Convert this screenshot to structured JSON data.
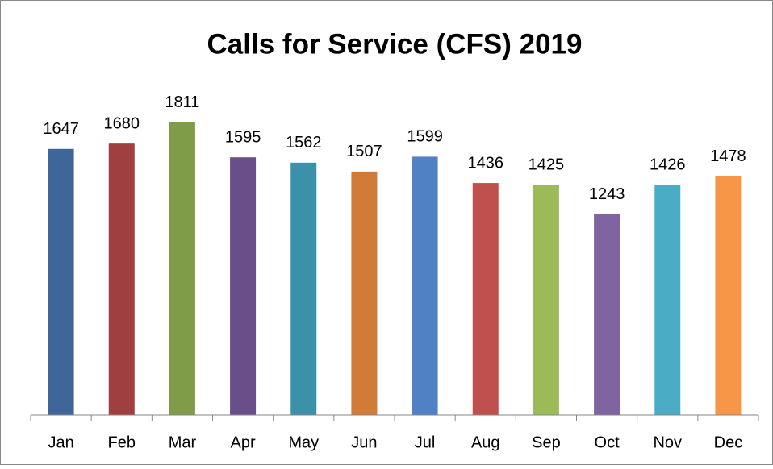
{
  "chart_data": {
    "type": "bar",
    "title": "Calls for Service (CFS) 2019",
    "categories": [
      "Jan",
      "Feb",
      "Mar",
      "Apr",
      "May",
      "Jun",
      "Jul",
      "Aug",
      "Sep",
      "Oct",
      "Nov",
      "Dec"
    ],
    "values": [
      1647,
      1680,
      1811,
      1595,
      1562,
      1507,
      1599,
      1436,
      1425,
      1243,
      1426,
      1478
    ],
    "colors": [
      "#3f6699",
      "#a03f3f",
      "#7f9c49",
      "#6a4e8a",
      "#3b92a8",
      "#d07c38",
      "#4f81c4",
      "#c0504d",
      "#9bbb59",
      "#8064a2",
      "#4bacc6",
      "#f79646"
    ],
    "ylim": [
      0,
      2000
    ]
  }
}
